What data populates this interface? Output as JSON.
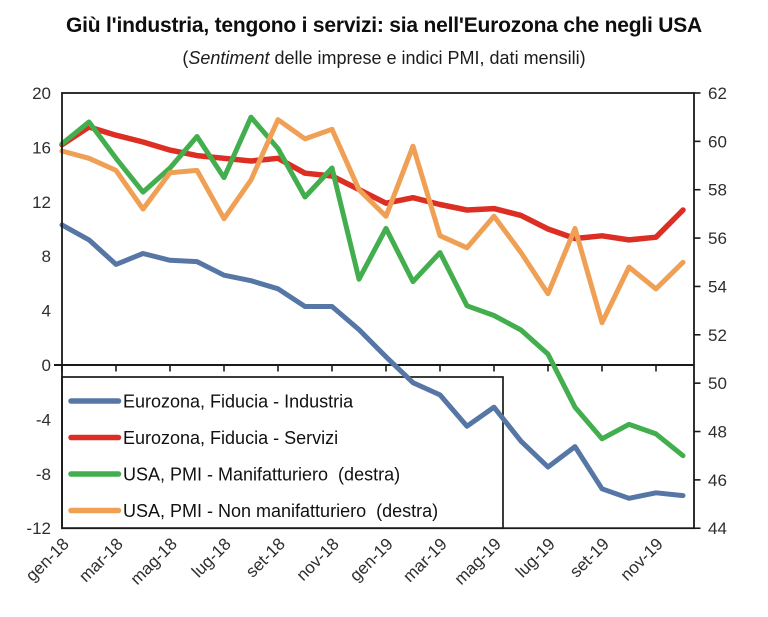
{
  "title": "Giù l'industria, tengono i servizi: sia nell'Eurozona che negli USA",
  "subtitle": {
    "pre": "(",
    "italic": "Sentiment",
    "post": " delle imprese e indici PMI, dati mensili)"
  },
  "colors": {
    "industria_blue": "#5676a5",
    "servizi_red": "#dc2e22",
    "manifatturiero_green": "#43ae4e",
    "non_manifatturiero_orange": "#efa055",
    "axis_black": "#1a1a1a"
  },
  "chart_data": {
    "type": "line",
    "title": "Giù l'industria, tengono i servizi: sia nell'Eurozona che negli USA",
    "subtitle": "(Sentiment delle imprese e indici PMI, dati mensili)",
    "x": [
      "gen-18",
      "feb-18",
      "mar-18",
      "apr-18",
      "mag-18",
      "giu-18",
      "lug-18",
      "ago-18",
      "set-18",
      "ott-18",
      "nov-18",
      "dic-18",
      "gen-19",
      "feb-19",
      "mar-19",
      "apr-19",
      "mag-19",
      "giu-19",
      "lug-19",
      "ago-19",
      "set-19",
      "ott-19",
      "nov-19",
      "dic-19"
    ],
    "x_tick_labels": [
      "gen-18",
      "mar-18",
      "mag-18",
      "lug-18",
      "set-18",
      "nov-18",
      "gen-19",
      "mar-19",
      "mag-19",
      "lug-19",
      "set-19",
      "nov-19"
    ],
    "left_axis": {
      "ticks": [
        20,
        16,
        12,
        8,
        4,
        0,
        -4,
        -8,
        -12
      ],
      "range": [
        -12,
        20
      ]
    },
    "right_axis": {
      "ticks": [
        62,
        60,
        58,
        56,
        54,
        52,
        50,
        48,
        46,
        44
      ],
      "range": [
        44,
        62
      ]
    },
    "grid": "none",
    "legend_position": "bottom-left-box",
    "series": [
      {
        "name": "Eurozona, Fiducia - Industria",
        "axis": "left",
        "color": "#5676a5",
        "values": [
          10.3,
          9.2,
          7.4,
          8.2,
          7.7,
          7.6,
          6.6,
          6.2,
          5.6,
          4.3,
          4.3,
          2.6,
          0.6,
          -1.3,
          -2.2,
          -4.5,
          -3.1,
          -5.6,
          -7.5,
          -6.0,
          -9.1,
          -9.8,
          -9.4,
          -9.6
        ]
      },
      {
        "name": "Eurozona, Fiducia - Servizi",
        "axis": "left",
        "color": "#dc2e22",
        "values": [
          16.2,
          17.5,
          16.9,
          16.4,
          15.8,
          15.4,
          15.2,
          15.0,
          15.2,
          14.1,
          13.9,
          12.9,
          11.9,
          12.3,
          11.8,
          11.4,
          11.5,
          11.0,
          10.0,
          9.3,
          9.5,
          9.2,
          9.4,
          11.4
        ]
      },
      {
        "name": "USA, PMI - Manifatturiero  (destra)",
        "axis": "right",
        "color": "#43ae4e",
        "values": [
          59.9,
          60.8,
          59.3,
          57.9,
          58.9,
          60.2,
          58.5,
          61.0,
          59.7,
          57.7,
          58.9,
          54.3,
          56.4,
          54.2,
          55.4,
          53.2,
          52.8,
          52.2,
          51.2,
          49.0,
          47.7,
          48.3,
          47.9,
          47.0
        ]
      },
      {
        "name": "USA, PMI - Non manifatturiero  (destra)",
        "axis": "right",
        "color": "#efa055",
        "values": [
          59.6,
          59.3,
          58.8,
          57.2,
          58.7,
          58.8,
          56.8,
          58.4,
          60.9,
          60.1,
          60.5,
          58.0,
          56.9,
          59.8,
          56.1,
          55.6,
          56.9,
          55.4,
          53.7,
          56.4,
          52.5,
          54.8,
          53.9,
          55.0
        ]
      }
    ]
  }
}
